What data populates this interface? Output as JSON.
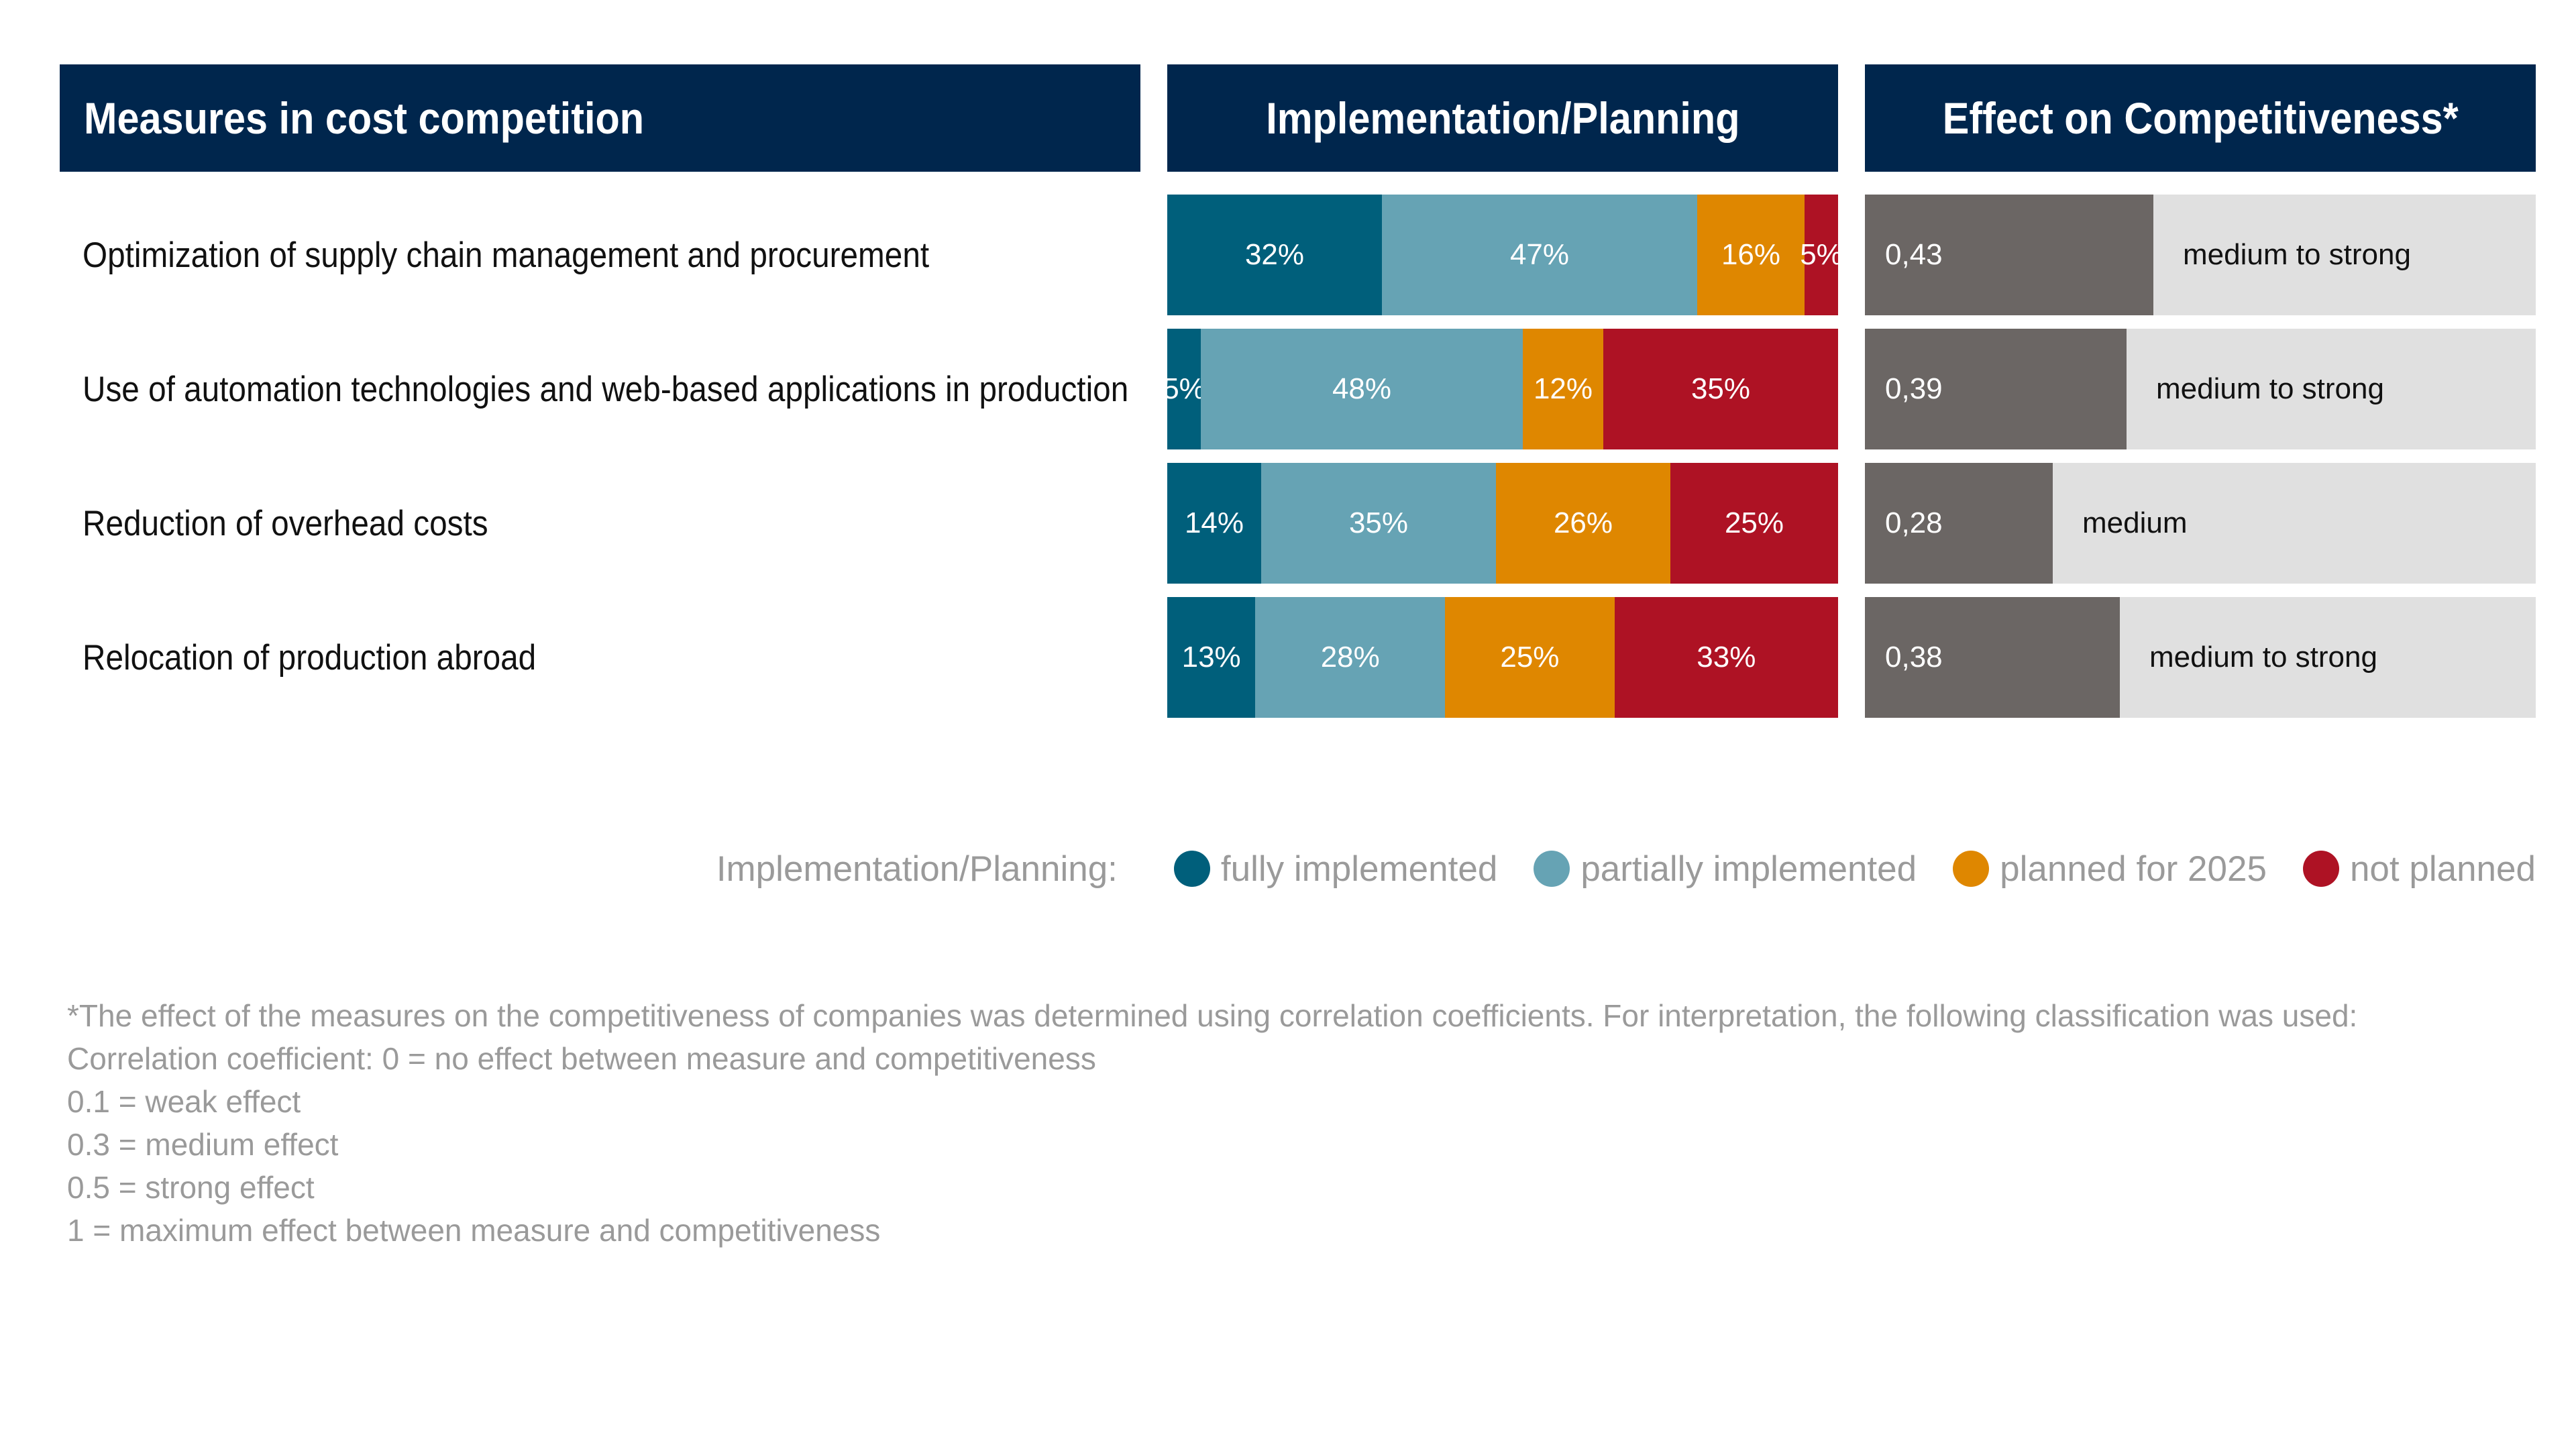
{
  "headers": {
    "measures": "Measures in cost competition",
    "implementation": "Implementation/Planning",
    "effect": "Effect on Competitiveness*"
  },
  "colors": {
    "fully_implemented": "#005f7b",
    "partially_implemented": "#66a3b4",
    "planned_for_2025": "#df8700",
    "not_planned": "#ae1224",
    "effect_bar": "#6b6664",
    "effect_bg": "#e0e0e0",
    "header_bg": "#00264d"
  },
  "chart_data": [
    {
      "type": "bar",
      "orientation": "horizontal",
      "stacked": true,
      "title": "Implementation/Planning",
      "categories": [
        "Optimization of supply chain management and procurement",
        "Use of automation technologies and web-based applications in production",
        "Reduction of overhead costs",
        "Relocation of production abroad"
      ],
      "series": [
        {
          "name": "fully implemented",
          "values": [
            32,
            5,
            14,
            13
          ],
          "labels": [
            "32%",
            "5%",
            "14%",
            "13%"
          ]
        },
        {
          "name": "partially implemented",
          "values": [
            47,
            48,
            35,
            28
          ],
          "labels": [
            "47%",
            "48%",
            "35%",
            "28%"
          ]
        },
        {
          "name": "planned for 2025",
          "values": [
            16,
            12,
            26,
            25
          ],
          "labels": [
            "16%",
            "12%",
            "26%",
            "25%"
          ]
        },
        {
          "name": "not planned",
          "values": [
            5,
            35,
            25,
            33
          ],
          "labels": [
            "5%",
            "35%",
            "25%",
            "33%"
          ]
        }
      ],
      "unit": "%",
      "xlim": [
        0,
        100
      ]
    },
    {
      "type": "bar",
      "orientation": "horizontal",
      "title": "Effect on Competitiveness*",
      "categories": [
        "Optimization of supply chain management and procurement",
        "Use of automation technologies and web-based applications in production",
        "Reduction of overhead costs",
        "Relocation of production abroad"
      ],
      "values": [
        0.43,
        0.39,
        0.28,
        0.38
      ],
      "value_labels": [
        "0,43",
        "0,39",
        "0,28",
        "0,38"
      ],
      "classifications": [
        "medium to strong",
        "medium to strong",
        "medium",
        "medium to strong"
      ],
      "xlim": [
        0,
        1
      ]
    }
  ],
  "legend": {
    "title": "Implementation/Planning:",
    "items": [
      "fully implemented",
      "partially implemented",
      "planned for 2025",
      "not planned"
    ]
  },
  "footnote": [
    "*The effect of the measures on the competitiveness of companies was determined using correlation coefficients. For interpretation, the following classification was used:",
    "Correlation coefficient: 0 = no effect between measure and competitiveness",
    "0.1 = weak effect",
    "0.3 = medium effect",
    "0.5 = strong effect",
    "1 = maximum effect between measure and competitiveness"
  ]
}
